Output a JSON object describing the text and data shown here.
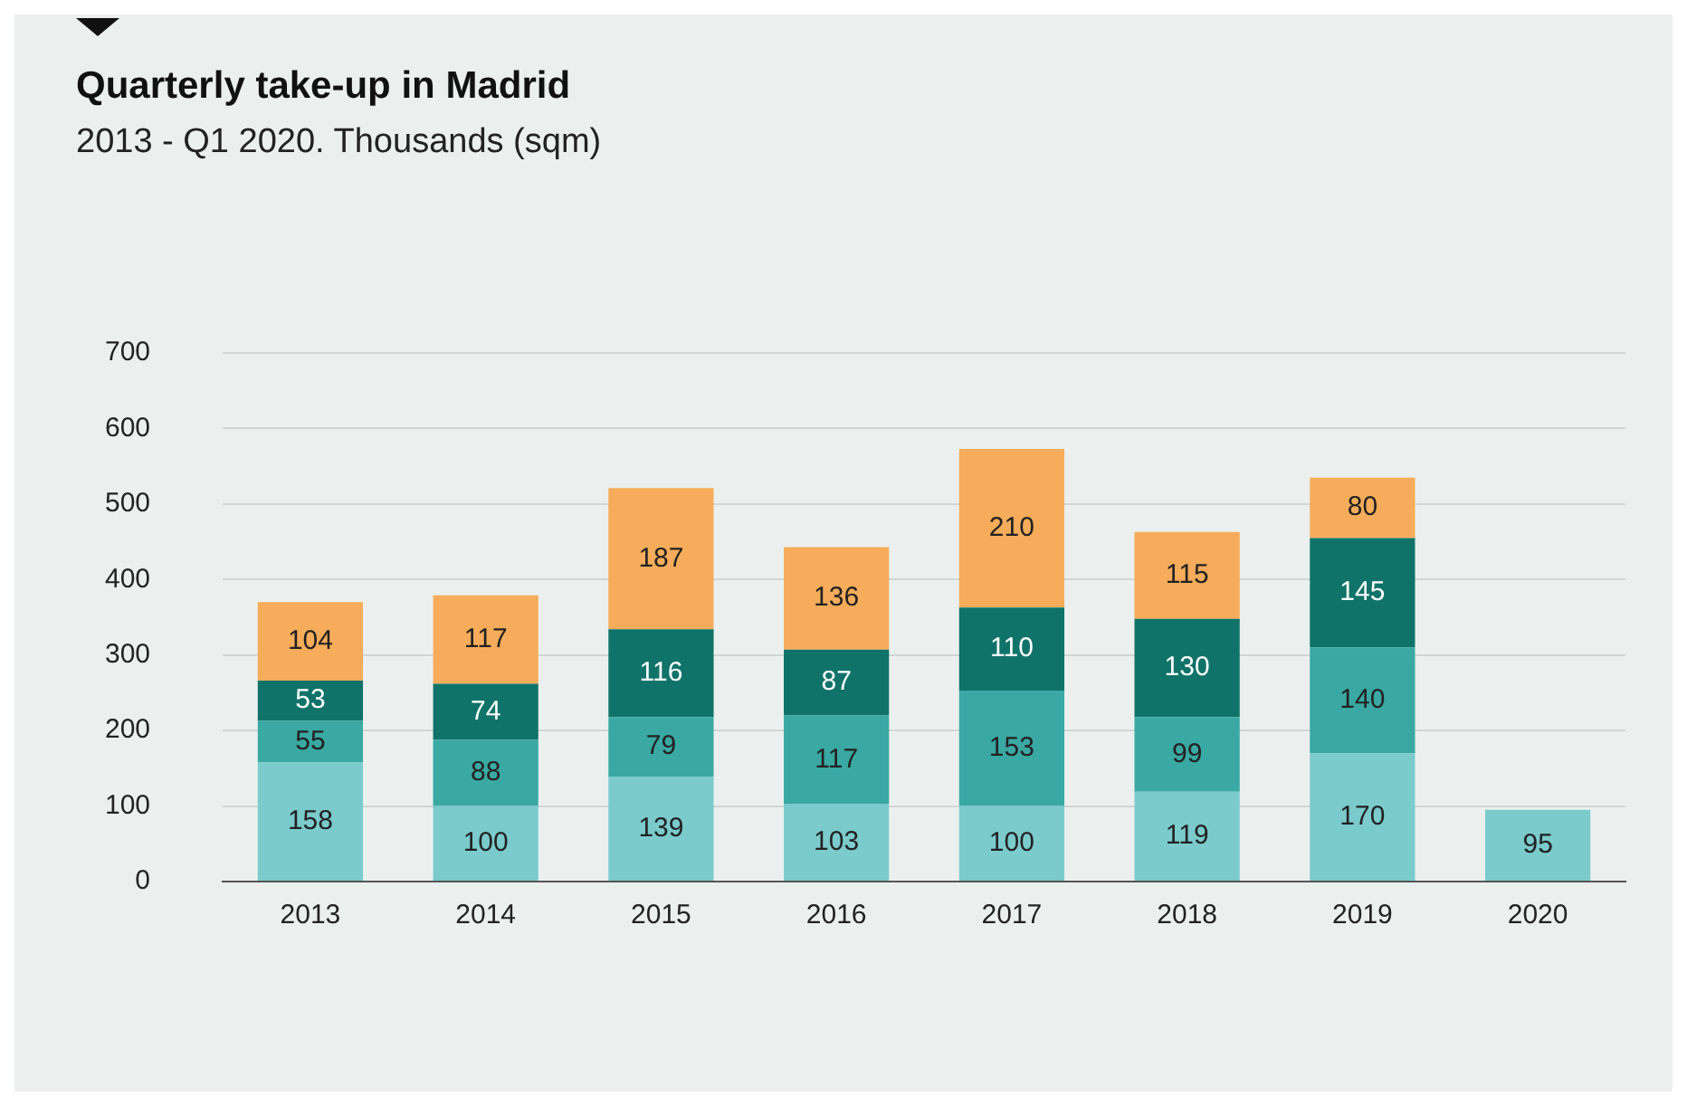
{
  "chart_data": {
    "type": "bar",
    "title": "Quarterly take-up in Madrid",
    "subtitle": "2013 - Q1 2020. Thousands (sqm)",
    "categories": [
      "2013",
      "2014",
      "2015",
      "2016",
      "2017",
      "2018",
      "2019",
      "2020"
    ],
    "stacked": true,
    "series": [
      {
        "color": "#7bcbcd",
        "values": [
          158,
          100,
          139,
          103,
          100,
          119,
          170,
          95
        ]
      },
      {
        "color": "#3aa8a3",
        "values": [
          55,
          88,
          79,
          117,
          153,
          99,
          140,
          null
        ]
      },
      {
        "color": "#107369",
        "values": [
          53,
          74,
          116,
          87,
          110,
          130,
          145,
          null
        ]
      },
      {
        "color": "#f6ac5a",
        "values": [
          104,
          117,
          187,
          136,
          210,
          115,
          80,
          null
        ]
      }
    ],
    "ylim": [
      0,
      700
    ],
    "yticks": [
      0,
      100,
      200,
      300,
      400,
      500,
      600,
      700
    ],
    "grid": "y",
    "legend": false,
    "data_labels": true
  }
}
